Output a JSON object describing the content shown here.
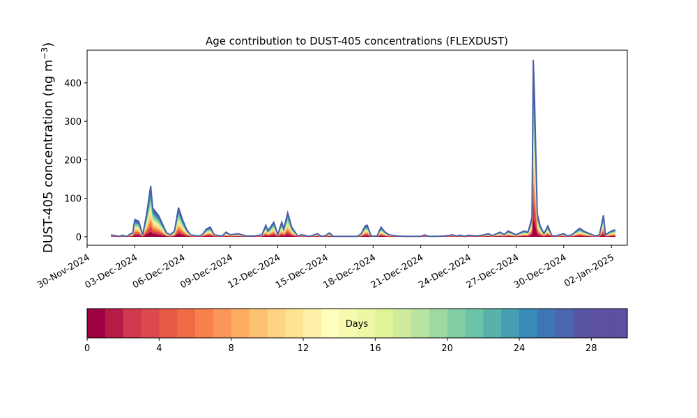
{
  "chart_data": {
    "type": "area",
    "title": "Age contribution to DUST-405 concentrations (FLEXDUST)",
    "ylabel_main": "DUST-405 concentration (ng m",
    "ylabel_sup": "−3",
    "ylabel_close": ")",
    "xlabel": "",
    "x_start": "2024-11-30",
    "x_end": "2025-01-03",
    "ylim": [
      -22,
      485
    ],
    "yticks": [
      0,
      100,
      200,
      300,
      400
    ],
    "xticks": [
      {
        "date": "2024-11-30",
        "label": "30-Nov-2024"
      },
      {
        "date": "2024-12-03",
        "label": "03-Dec-2024"
      },
      {
        "date": "2024-12-06",
        "label": "06-Dec-2024"
      },
      {
        "date": "2024-12-09",
        "label": "09-Dec-2024"
      },
      {
        "date": "2024-12-12",
        "label": "12-Dec-2024"
      },
      {
        "date": "2024-12-15",
        "label": "15-Dec-2024"
      },
      {
        "date": "2024-12-18",
        "label": "18-Dec-2024"
      },
      {
        "date": "2024-12-21",
        "label": "21-Dec-2024"
      },
      {
        "date": "2024-12-24",
        "label": "24-Dec-2024"
      },
      {
        "date": "2024-12-27",
        "label": "27-Dec-2024"
      },
      {
        "date": "2024-12-30",
        "label": "30-Dec-2024"
      },
      {
        "date": "2025-01-02",
        "label": "02-Jan-2025"
      }
    ],
    "total_series": [
      [
        "2024-12-01T12:00",
        5
      ],
      [
        "2024-12-02T00:00",
        1
      ],
      [
        "2024-12-02T06:00",
        4
      ],
      [
        "2024-12-02T12:00",
        1
      ],
      [
        "2024-12-02T18:00",
        8
      ],
      [
        "2024-12-02T21:00",
        10
      ],
      [
        "2024-12-03T00:00",
        45
      ],
      [
        "2024-12-03T06:00",
        40
      ],
      [
        "2024-12-03T12:00",
        5
      ],
      [
        "2024-12-03T18:00",
        60
      ],
      [
        "2024-12-04T00:00",
        132
      ],
      [
        "2024-12-04T03:00",
        75
      ],
      [
        "2024-12-04T12:00",
        55
      ],
      [
        "2024-12-05T00:00",
        10
      ],
      [
        "2024-12-05T06:00",
        5
      ],
      [
        "2024-12-05T12:00",
        15
      ],
      [
        "2024-12-05T18:00",
        76
      ],
      [
        "2024-12-06T00:00",
        45
      ],
      [
        "2024-12-06T06:00",
        20
      ],
      [
        "2024-12-06T12:00",
        5
      ],
      [
        "2024-12-07T00:00",
        2
      ],
      [
        "2024-12-07T06:00",
        5
      ],
      [
        "2024-12-07T12:00",
        20
      ],
      [
        "2024-12-07T18:00",
        25
      ],
      [
        "2024-12-08T00:00",
        5
      ],
      [
        "2024-12-08T12:00",
        2
      ],
      [
        "2024-12-08T18:00",
        12
      ],
      [
        "2024-12-09T00:00",
        5
      ],
      [
        "2024-12-09T12:00",
        8
      ],
      [
        "2024-12-10T00:00",
        2
      ],
      [
        "2024-12-10T12:00",
        2
      ],
      [
        "2024-12-11T00:00",
        5
      ],
      [
        "2024-12-11T06:00",
        30
      ],
      [
        "2024-12-11T09:00",
        15
      ],
      [
        "2024-12-11T18:00",
        38
      ],
      [
        "2024-12-12T00:00",
        5
      ],
      [
        "2024-12-12T06:00",
        38
      ],
      [
        "2024-12-12T09:00",
        20
      ],
      [
        "2024-12-12T15:00",
        62
      ],
      [
        "2024-12-12T21:00",
        25
      ],
      [
        "2024-12-13T06:00",
        2
      ],
      [
        "2024-12-13T12:00",
        5
      ],
      [
        "2024-12-14T00:00",
        1
      ],
      [
        "2024-12-14T12:00",
        8
      ],
      [
        "2024-12-14T18:00",
        1
      ],
      [
        "2024-12-15T00:00",
        3
      ],
      [
        "2024-12-15T06:00",
        10
      ],
      [
        "2024-12-15T12:00",
        1
      ],
      [
        "2024-12-16T00:00",
        1
      ],
      [
        "2024-12-17T00:00",
        1
      ],
      [
        "2024-12-17T06:00",
        8
      ],
      [
        "2024-12-17T12:00",
        28
      ],
      [
        "2024-12-17T15:00",
        30
      ],
      [
        "2024-12-17T21:00",
        2
      ],
      [
        "2024-12-18T06:00",
        2
      ],
      [
        "2024-12-18T12:00",
        25
      ],
      [
        "2024-12-18T18:00",
        12
      ],
      [
        "2024-12-19T00:00",
        5
      ],
      [
        "2024-12-19T12:00",
        2
      ],
      [
        "2024-12-20T00:00",
        1
      ],
      [
        "2024-12-21T00:00",
        1
      ],
      [
        "2024-12-21T06:00",
        5
      ],
      [
        "2024-12-21T12:00",
        1
      ],
      [
        "2024-12-22T00:00",
        1
      ],
      [
        "2024-12-22T12:00",
        2
      ],
      [
        "2024-12-23T00:00",
        5
      ],
      [
        "2024-12-23T06:00",
        2
      ],
      [
        "2024-12-23T12:00",
        4
      ],
      [
        "2024-12-23T18:00",
        1
      ],
      [
        "2024-12-24T00:00",
        4
      ],
      [
        "2024-12-24T12:00",
        2
      ],
      [
        "2024-12-25T00:00",
        5
      ],
      [
        "2024-12-25T06:00",
        8
      ],
      [
        "2024-12-25T12:00",
        3
      ],
      [
        "2024-12-26T00:00",
        12
      ],
      [
        "2024-12-26T06:00",
        5
      ],
      [
        "2024-12-26T12:00",
        15
      ],
      [
        "2024-12-26T18:00",
        10
      ],
      [
        "2024-12-27T00:00",
        5
      ],
      [
        "2024-12-27T06:00",
        10
      ],
      [
        "2024-12-27T12:00",
        15
      ],
      [
        "2024-12-27T18:00",
        12
      ],
      [
        "2024-12-28T00:00",
        50
      ],
      [
        "2024-12-28T02:00",
        460
      ],
      [
        "2024-12-28T04:00",
        350
      ],
      [
        "2024-12-28T08:00",
        60
      ],
      [
        "2024-12-28T12:00",
        30
      ],
      [
        "2024-12-28T18:00",
        8
      ],
      [
        "2024-12-29T00:00",
        28
      ],
      [
        "2024-12-29T06:00",
        3
      ],
      [
        "2024-12-29T12:00",
        2
      ],
      [
        "2024-12-30T00:00",
        8
      ],
      [
        "2024-12-30T06:00",
        2
      ],
      [
        "2024-12-30T12:00",
        5
      ],
      [
        "2024-12-31T00:00",
        22
      ],
      [
        "2024-12-31T06:00",
        15
      ],
      [
        "2024-12-31T12:00",
        10
      ],
      [
        "2025-01-01T00:00",
        2
      ],
      [
        "2025-01-01T06:00",
        5
      ],
      [
        "2025-01-01T12:00",
        56
      ],
      [
        "2025-01-01T15:00",
        5
      ],
      [
        "2025-01-02T00:00",
        15
      ],
      [
        "2025-01-02T06:00",
        18
      ]
    ],
    "series_colors": [
      "#9e0142",
      "#d53e4f",
      "#f46d43",
      "#fdae61",
      "#fee08b",
      "#e6f598",
      "#abdda4",
      "#66c2a5",
      "#3288bd",
      "#5e4fa2"
    ],
    "colorbar": {
      "label": "Days",
      "min": 0,
      "max": 30,
      "levels": 30,
      "ticks": [
        0,
        4,
        8,
        12,
        16,
        20,
        24,
        28
      ],
      "colors": [
        "#9e0142",
        "#b71c46",
        "#d0384d",
        "#dc494c",
        "#e75a47",
        "#f06b44",
        "#f7804c",
        "#fa9658",
        "#fdac61",
        "#fdc171",
        "#fed381",
        "#fee391",
        "#fef0a6",
        "#fffebe",
        "#f6fbb0",
        "#eef8a4",
        "#e1f397",
        "#cfec9d",
        "#b9e3a2",
        "#9ed9a4",
        "#84cfa5",
        "#6ac4a5",
        "#59b2aa",
        "#479eb1",
        "#388ab8",
        "#3e76b4",
        "#4b66ad",
        "#5854a4",
        "#5e4fa2",
        "#5e4fa2"
      ]
    },
    "grid": false,
    "legend": "none"
  }
}
